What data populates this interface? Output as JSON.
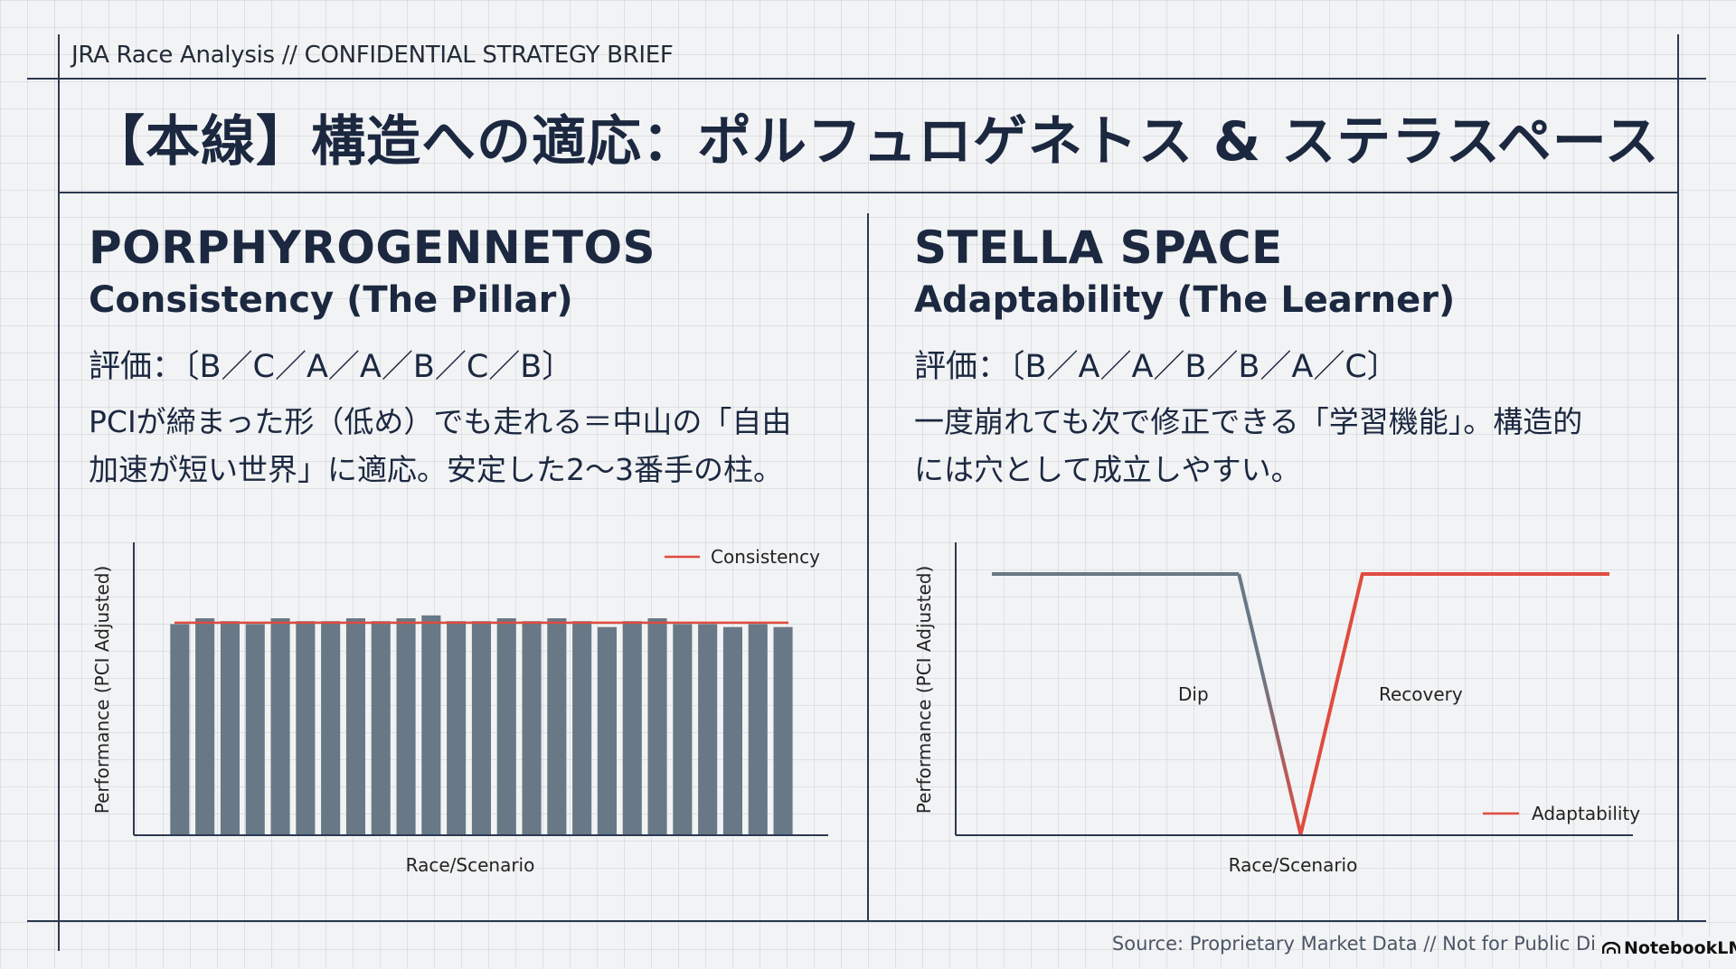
{
  "header": {
    "label": "JRA Race Analysis // CONFIDENTIAL STRATEGY BRIEF",
    "title": "【本線】構造への適応：ポルフュロゲネトス & ステラスペース"
  },
  "panels": [
    {
      "name": "PORPHYROGENNETOS",
      "subtitle": "Consistency (The Pillar)",
      "rating": "評価：〔B／C／A／A／B／C／B〕",
      "desc_line1": "PCIが締まった形（低め）でも走れる＝中山の「自由",
      "desc_line2": "加速が短い世界」に適応。安定した2〜3番手の柱。"
    },
    {
      "name": "STELLA SPACE",
      "subtitle": "Adaptability (The Learner)",
      "rating": "評価：〔B／A／A／B／B／A／C〕",
      "desc_line1": "一度崩れても次で修正できる「学習機能」。構造的",
      "desc_line2": "には穴として成立しやすい。"
    }
  ],
  "chart_data": [
    {
      "type": "bar",
      "xlabel": "Race/Scenario",
      "ylabel": "Performance (PCI Adjusted)",
      "ylim": [
        0,
        100
      ],
      "values": [
        72,
        74,
        73,
        72,
        74,
        73,
        73,
        74,
        73,
        74,
        75,
        73,
        73,
        74,
        73,
        74,
        73,
        71,
        73,
        74,
        72,
        72,
        71,
        72,
        71
      ],
      "reference_line": {
        "name": "Consistency",
        "value": 72.5,
        "color": "#e04b3f"
      },
      "legend": "top-right",
      "bar_color": "#687886",
      "grid": false
    },
    {
      "type": "line",
      "xlabel": "Race/Scenario",
      "ylabel": "Performance (PCI Adjusted)",
      "ylim": [
        0,
        100
      ],
      "x": [
        0,
        1,
        2,
        3,
        4,
        5,
        6,
        7,
        8,
        9,
        10
      ],
      "y": [
        90,
        90,
        90,
        90,
        90,
        0,
        90,
        90,
        90,
        90,
        90
      ],
      "series": [
        {
          "name": "Adaptability",
          "color": "#e04b3f"
        }
      ],
      "pre_color": "#687886",
      "annotations": [
        {
          "text": "Dip"
        },
        {
          "text": "Recovery"
        }
      ],
      "legend": "bottom-right",
      "grid": false
    }
  ],
  "footer": {
    "source": "Source: Proprietary Market Data // Not for Public Di",
    "brand": "NotebookLM"
  }
}
